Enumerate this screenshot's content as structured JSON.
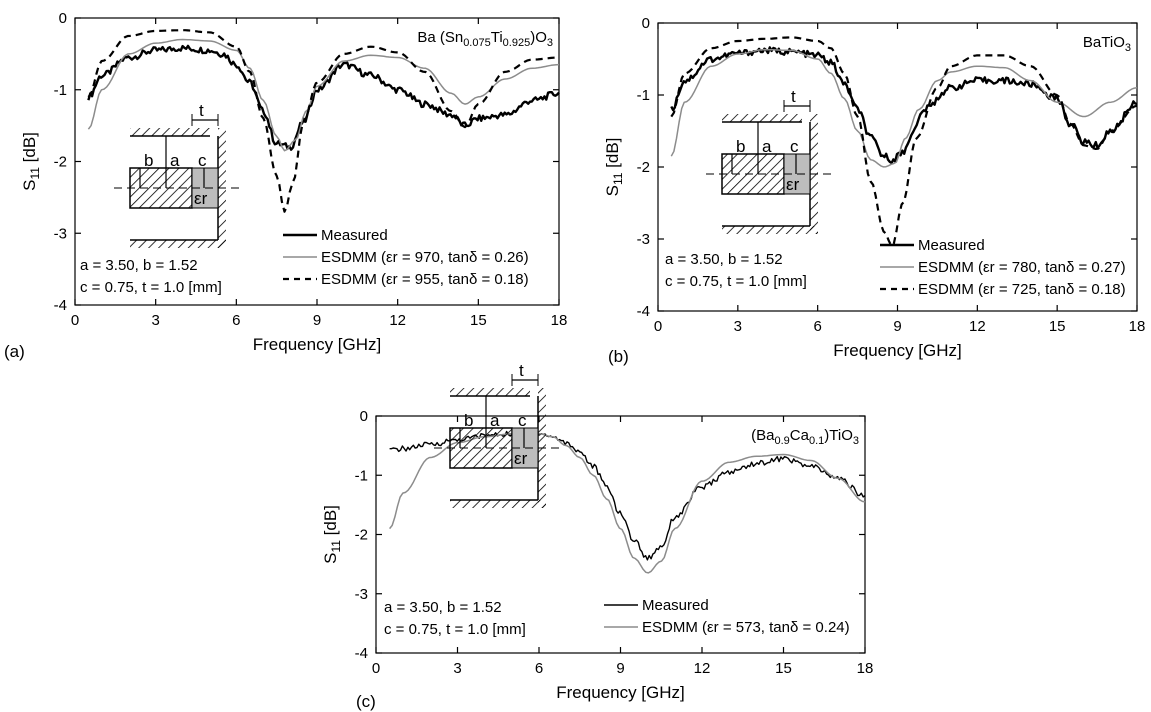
{
  "chart_data": [
    {
      "panel_label": "(a)",
      "type": "line",
      "title": "Ba (Sn0.075Ti0.925)O3",
      "title_parts": [
        {
          "t": "Ba (Sn",
          "sub": false
        },
        {
          "t": "0.075",
          "sub": true
        },
        {
          "t": "Ti",
          "sub": false
        },
        {
          "t": "0.925",
          "sub": true
        },
        {
          "t": ")O",
          "sub": false
        },
        {
          "t": "3",
          "sub": true
        }
      ],
      "xlabel": "Frequency [GHz]",
      "ylabel": "S11 [dB]",
      "xlim": [
        0,
        18
      ],
      "ylim": [
        -4,
        0
      ],
      "xticks": [
        0,
        3,
        6,
        9,
        12,
        15,
        18
      ],
      "yticks": [
        0,
        -1,
        -2,
        -3,
        -4
      ],
      "params": [
        "a = 3.50,  b = 1.52",
        "c = 0.75,  t = 1.0  [mm]"
      ],
      "series": [
        {
          "name": "Measured",
          "style": "measured",
          "x": [
            0.5,
            1,
            2,
            3,
            4,
            5,
            5.5,
            6,
            6.5,
            7,
            7.5,
            8,
            8.5,
            9,
            10,
            11,
            12,
            13,
            14,
            14.5,
            15,
            16,
            17,
            18
          ],
          "y": [
            -1.1,
            -0.8,
            -0.55,
            -0.45,
            -0.42,
            -0.45,
            -0.5,
            -0.65,
            -0.9,
            -1.3,
            -1.75,
            -1.8,
            -1.45,
            -1.0,
            -0.65,
            -0.8,
            -1.0,
            -1.2,
            -1.35,
            -1.5,
            -1.4,
            -1.35,
            -1.15,
            -1.05
          ]
        },
        {
          "name": "ESDMM (εr = 970, tanδ = 0.26)",
          "style": "gray",
          "x": [
            0.5,
            1,
            2,
            3,
            4,
            5,
            6,
            6.5,
            7,
            7.5,
            7.8,
            8.2,
            8.6,
            9,
            10,
            11,
            12,
            13,
            14,
            14.5,
            15,
            16,
            17,
            18
          ],
          "y": [
            -1.55,
            -1.0,
            -0.5,
            -0.35,
            -0.3,
            -0.32,
            -0.45,
            -0.7,
            -1.15,
            -1.65,
            -1.85,
            -1.7,
            -1.3,
            -0.95,
            -0.6,
            -0.52,
            -0.55,
            -0.7,
            -1.05,
            -1.2,
            -1.1,
            -0.85,
            -0.7,
            -0.65
          ]
        },
        {
          "name": "ESDMM (εr = 955, tanδ = 0.18)",
          "style": "dashed",
          "x": [
            0.5,
            1,
            2,
            3,
            4,
            5,
            6,
            6.5,
            7,
            7.5,
            7.8,
            8.1,
            8.5,
            9,
            10,
            11,
            12,
            13,
            14,
            14.5,
            15,
            16,
            17,
            18
          ],
          "y": [
            -1.1,
            -0.6,
            -0.25,
            -0.18,
            -0.17,
            -0.2,
            -0.4,
            -0.75,
            -1.4,
            -2.2,
            -2.7,
            -2.3,
            -1.45,
            -0.9,
            -0.5,
            -0.4,
            -0.48,
            -0.75,
            -1.3,
            -1.52,
            -1.2,
            -0.75,
            -0.58,
            -0.55
          ]
        }
      ]
    },
    {
      "panel_label": "(b)",
      "type": "line",
      "title": "BaTiO3",
      "title_parts": [
        {
          "t": "BaTiO",
          "sub": false
        },
        {
          "t": "3",
          "sub": true
        }
      ],
      "xlabel": "Frequency [GHz]",
      "ylabel": "S11 [dB]",
      "xlim": [
        0,
        18
      ],
      "ylim": [
        -4,
        0
      ],
      "xticks": [
        0,
        3,
        6,
        9,
        12,
        15,
        18
      ],
      "yticks": [
        0,
        -1,
        -2,
        -3,
        -4
      ],
      "params": [
        "a = 3.50,  b = 1.52",
        "c = 0.75,  t = 1.0  [mm]"
      ],
      "series": [
        {
          "name": "Measured",
          "style": "measured",
          "x": [
            0.5,
            1,
            2,
            3,
            4,
            5,
            6,
            6.5,
            7,
            7.5,
            8,
            8.5,
            8.8,
            9.2,
            9.6,
            10,
            11,
            12,
            13,
            14,
            15,
            15.5,
            16,
            16.5,
            17,
            18
          ],
          "y": [
            -1.2,
            -0.8,
            -0.5,
            -0.42,
            -0.38,
            -0.4,
            -0.45,
            -0.55,
            -0.85,
            -1.2,
            -1.6,
            -1.85,
            -1.9,
            -1.8,
            -1.5,
            -1.2,
            -0.9,
            -0.8,
            -0.8,
            -0.85,
            -1.05,
            -1.4,
            -1.65,
            -1.7,
            -1.5,
            -1.1
          ]
        },
        {
          "name": "ESDMM (εr = 780, tanδ = 0.27)",
          "style": "gray",
          "x": [
            0.5,
            1,
            2,
            3,
            4,
            5,
            6,
            6.5,
            7,
            7.5,
            8,
            8.5,
            8.9,
            9.3,
            9.8,
            10.5,
            11,
            12,
            13,
            14,
            15,
            16,
            17,
            18
          ],
          "y": [
            -1.85,
            -1.1,
            -0.6,
            -0.43,
            -0.37,
            -0.38,
            -0.5,
            -0.7,
            -1.05,
            -1.5,
            -1.9,
            -2.0,
            -1.95,
            -1.6,
            -1.2,
            -0.8,
            -0.68,
            -0.6,
            -0.62,
            -0.8,
            -1.1,
            -1.3,
            -1.1,
            -0.9
          ]
        },
        {
          "name": "ESDMM (εr = 725, tanδ = 0.18)",
          "style": "dashed",
          "x": [
            0.5,
            1,
            2,
            3,
            4,
            5,
            6,
            6.5,
            7,
            7.5,
            8,
            8.5,
            8.8,
            9.2,
            9.7,
            10.5,
            11,
            12,
            13,
            14,
            15,
            15.5,
            16,
            16.5,
            17,
            18
          ],
          "y": [
            -1.3,
            -0.7,
            -0.35,
            -0.25,
            -0.22,
            -0.2,
            -0.25,
            -0.35,
            -0.7,
            -1.3,
            -2.2,
            -2.9,
            -3.1,
            -2.5,
            -1.6,
            -0.9,
            -0.6,
            -0.45,
            -0.45,
            -0.6,
            -1.0,
            -1.4,
            -1.7,
            -1.75,
            -1.5,
            -1.15
          ]
        }
      ]
    },
    {
      "panel_label": "(c)",
      "type": "line",
      "title": "(Ba0.9Ca0.1)TiO3",
      "title_parts": [
        {
          "t": "(Ba",
          "sub": false
        },
        {
          "t": "0.9",
          "sub": true
        },
        {
          "t": "Ca",
          "sub": false
        },
        {
          "t": "0.1",
          "sub": true
        },
        {
          "t": ")TiO",
          "sub": false
        },
        {
          "t": "3",
          "sub": true
        }
      ],
      "xlabel": "Frequency [GHz]",
      "ylabel": "S11 [dB]",
      "xlim": [
        0,
        18
      ],
      "ylim": [
        -4,
        0
      ],
      "xticks": [
        0,
        3,
        6,
        9,
        12,
        15,
        18
      ],
      "yticks": [
        0,
        -1,
        -2,
        -3,
        -4
      ],
      "params": [
        "a = 3.50,  b = 1.52",
        "c = 0.75,  t = 1.0  [mm]"
      ],
      "series": [
        {
          "name": "Measured",
          "style": "measured-thin",
          "x": [
            0.5,
            1,
            2,
            3,
            4,
            5,
            6,
            6.5,
            7,
            7.5,
            8,
            8.5,
            9,
            9.5,
            10,
            10.5,
            11,
            12,
            13,
            14,
            15,
            16,
            17,
            18
          ],
          "y": [
            -0.58,
            -0.55,
            -0.48,
            -0.4,
            -0.33,
            -0.3,
            -0.3,
            -0.35,
            -0.45,
            -0.6,
            -0.85,
            -1.2,
            -1.65,
            -2.1,
            -2.4,
            -2.2,
            -1.7,
            -1.2,
            -0.95,
            -0.8,
            -0.72,
            -0.85,
            -1.05,
            -1.35
          ]
        },
        {
          "name": "ESDMM (εr = 573, tanδ = 0.24)",
          "style": "gray",
          "x": [
            0.5,
            1,
            2,
            3,
            4,
            5,
            6,
            6.5,
            7,
            7.5,
            8,
            8.5,
            9,
            9.5,
            10,
            10.5,
            11,
            12,
            13,
            14,
            15,
            16,
            17,
            18
          ],
          "y": [
            -1.9,
            -1.3,
            -0.7,
            -0.45,
            -0.35,
            -0.3,
            -0.3,
            -0.35,
            -0.5,
            -0.7,
            -1.0,
            -1.4,
            -1.9,
            -2.4,
            -2.65,
            -2.45,
            -1.9,
            -1.1,
            -0.78,
            -0.68,
            -0.65,
            -0.75,
            -1.05,
            -1.45
          ]
        }
      ]
    }
  ]
}
